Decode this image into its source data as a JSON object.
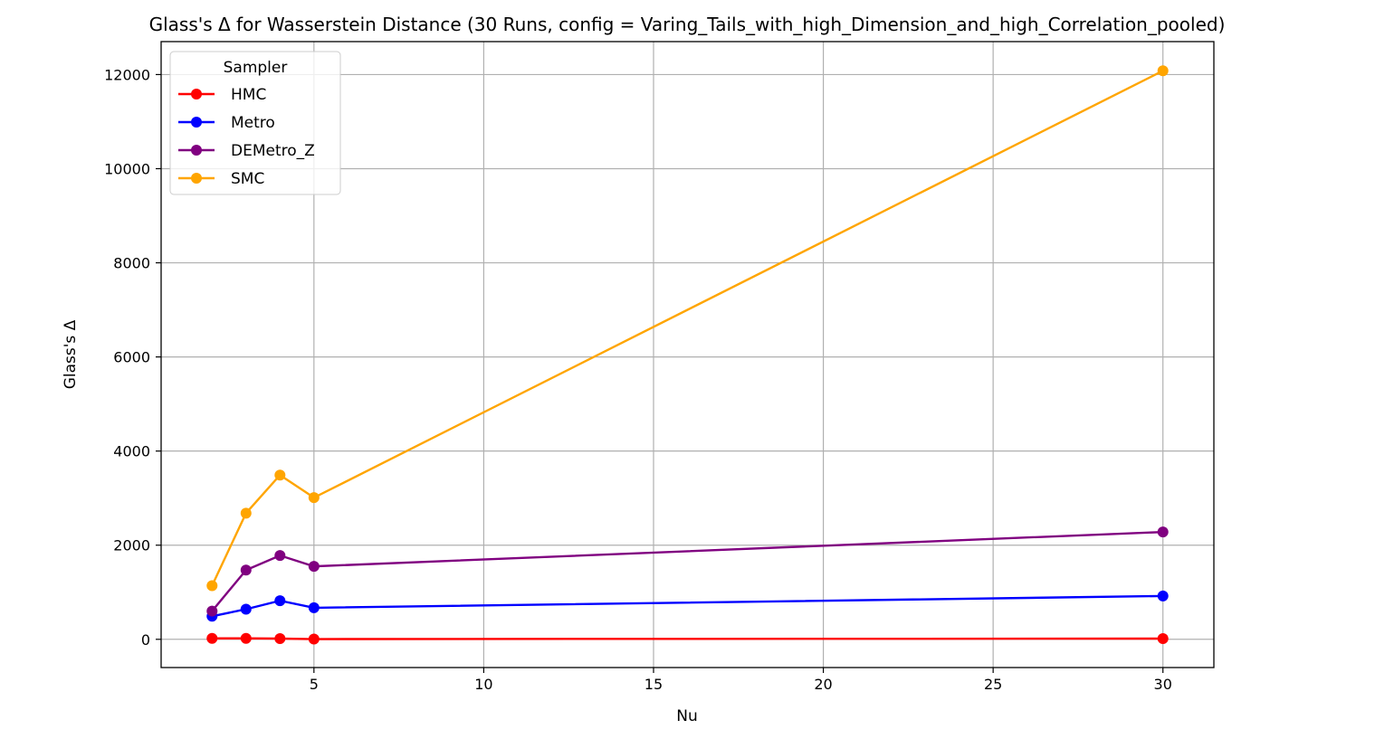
{
  "chart_data": {
    "type": "line",
    "title": "Glass's Δ for Wasserstein Distance (30 Runs, config = Varing_Tails_with_high_Dimension_and_high_Correlation_pooled)",
    "xlabel": "Nu",
    "ylabel": "Glass's Δ",
    "xlim": [
      0.5,
      31.5
    ],
    "ylim": [
      -600,
      12700
    ],
    "xticks": [
      5,
      10,
      15,
      20,
      25,
      30
    ],
    "yticks": [
      0,
      2000,
      4000,
      6000,
      8000,
      10000,
      12000
    ],
    "grid": true,
    "legend": {
      "title": "Sampler",
      "placement": "upper-left"
    },
    "x": [
      2,
      3,
      4,
      5,
      30
    ],
    "series": [
      {
        "name": "HMC",
        "color": "#ff0000",
        "values": [
          20,
          20,
          15,
          5,
          15
        ]
      },
      {
        "name": "Metro",
        "color": "#0000ff",
        "values": [
          490,
          640,
          820,
          670,
          920
        ]
      },
      {
        "name": "DEMetro_Z",
        "color": "#800080",
        "values": [
          600,
          1470,
          1780,
          1550,
          2280
        ]
      },
      {
        "name": "SMC",
        "color": "#ffa500",
        "values": [
          1140,
          2680,
          3490,
          3010,
          12080
        ]
      }
    ]
  }
}
